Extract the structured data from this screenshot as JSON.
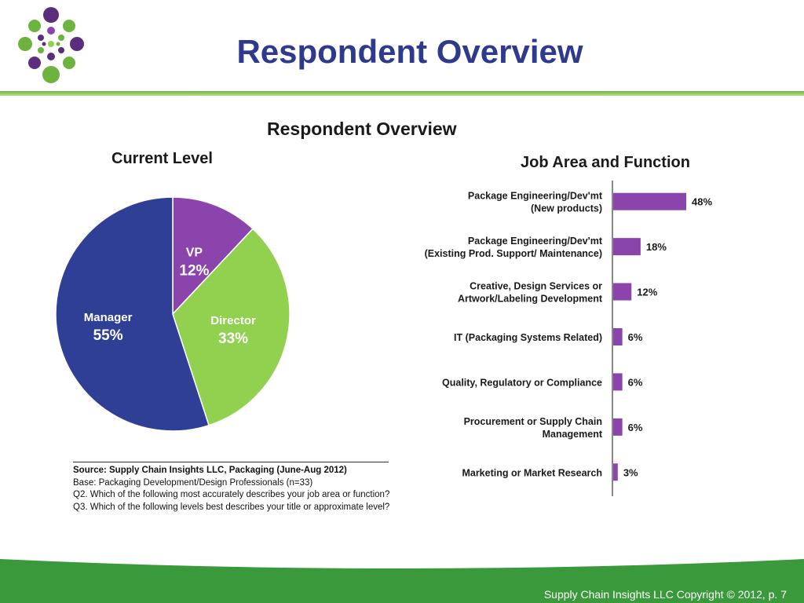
{
  "slide": {
    "title": "Respondent Overview",
    "chart_heading": "Respondent Overview"
  },
  "colors": {
    "title_blue": "#2e3a8c",
    "green": "#4ba33a",
    "purple": "#8b44ac",
    "navy": "#2f3f96",
    "lime": "#92d050"
  },
  "chart_data": [
    {
      "type": "pie",
      "title": "Current Level",
      "slices": [
        {
          "label": "VP",
          "value": 12,
          "display": "12%",
          "color": "#8b44ac"
        },
        {
          "label": "Director",
          "value": 33,
          "display": "33%",
          "color": "#92d050"
        },
        {
          "label": "Manager",
          "value": 55,
          "display": "55%",
          "color": "#2f3f96"
        }
      ]
    },
    {
      "type": "bar",
      "orientation": "horizontal",
      "title": "Job Area and Function",
      "categories": [
        [
          "Package Engineering/Dev'mt",
          "(New products)"
        ],
        [
          "Package Engineering/Dev'mt",
          "(Existing Prod. Support/ Maintenance)"
        ],
        [
          "Creative, Design Services or",
          "Artwork/Labeling Development"
        ],
        [
          "IT (Packaging Systems Related)"
        ],
        [
          "Quality, Regulatory or Compliance"
        ],
        [
          "Procurement or Supply Chain",
          "Management"
        ],
        [
          "Marketing or Market Research"
        ]
      ],
      "values": [
        48,
        18,
        12,
        6,
        6,
        6,
        3
      ],
      "value_labels": [
        "48%",
        "18%",
        "12%",
        "6%",
        "6%",
        "6%",
        "3%"
      ],
      "color": "#8b44ac"
    }
  ],
  "source": {
    "line1": "Source:  Supply Chain Insights LLC, Packaging (June-Aug 2012)",
    "line2": "Base:  Packaging Development/Design Professionals (n=33)",
    "line3": "Q2. Which of the following most accurately describes your job area or function?",
    "line4": "Q3. Which of the following levels best describes your title or approximate level?"
  },
  "footer": {
    "text": "Supply Chain Insights LLC Copyright © 2012, p. 7"
  }
}
